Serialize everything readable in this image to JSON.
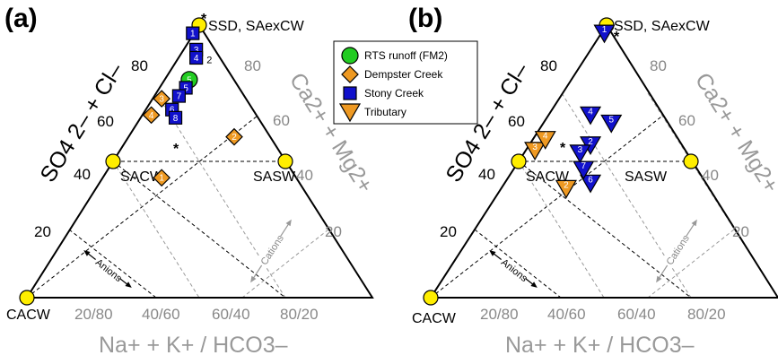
{
  "colors": {
    "rts": "#22cc22",
    "dempster": "#ee9922",
    "stony": "#1111cc",
    "tributary_fill": "#1111cc",
    "tributary_edge": "#ee9922",
    "vertex": "#ffee00",
    "grid_black": "#000000",
    "grid_grey": "#999999"
  },
  "chart_data": [
    {
      "type": "scatter",
      "panel_label": "(a)",
      "plot": "ternary",
      "left_axis_label": "SO4 2– + Cl–",
      "right_axis_label": "Ca2+ + Mg2+",
      "bottom_axis_label": "Na+ + K+ / HCO3–",
      "left_ticks": [
        "20",
        "40",
        "60",
        "80"
      ],
      "right_ticks": [
        "20",
        "40",
        "60",
        "80"
      ],
      "bottom_ticks": [
        "20/80",
        "40/60",
        "60/40",
        "80/20"
      ],
      "vertex_labels": {
        "top": "SSD, SAexCW",
        "bottom_left": "CACW"
      },
      "region_labels": [
        "SACW",
        "SASW"
      ],
      "gradient_labels": [
        "Anions",
        "Cations"
      ],
      "series": [
        {
          "name": "RTS runoff (FM2)",
          "marker": "circle",
          "points": [
            {
              "label": "5",
              "x": 0.47,
              "y": 0.8
            }
          ]
        },
        {
          "name": "Dempster Creek",
          "marker": "diamond",
          "points": [
            {
              "label": "1",
              "x": 0.39,
              "y": 0.44
            },
            {
              "label": "2",
              "x": 0.6,
              "y": 0.59
            },
            {
              "label": "3",
              "x": 0.39,
              "y": 0.73
            },
            {
              "label": "4",
              "x": 0.36,
              "y": 0.67
            }
          ]
        },
        {
          "name": "Stony Creek",
          "marker": "square",
          "points": [
            {
              "label": "1",
              "x": 0.48,
              "y": 0.97
            },
            {
              "label": "3",
              "x": 0.49,
              "y": 0.91
            },
            {
              "label": "4",
              "x": 0.49,
              "y": 0.88
            },
            {
              "label": "5",
              "x": 0.46,
              "y": 0.77
            },
            {
              "label": "6",
              "x": 0.42,
              "y": 0.69
            },
            {
              "label": "7",
              "x": 0.44,
              "y": 0.74
            },
            {
              "label": "8",
              "x": 0.43,
              "y": 0.66
            }
          ]
        }
      ],
      "annotations": [
        {
          "text": "2",
          "x": 0.52,
          "y": 0.86
        }
      ],
      "grid": true
    },
    {
      "type": "scatter",
      "panel_label": "(b)",
      "plot": "ternary",
      "left_axis_label": "SO4 2– + Cl–",
      "right_axis_label": "Ca2+ + Mg2+",
      "bottom_axis_label": "Na+ + K+ / HCO3–",
      "left_ticks": [
        "20",
        "40",
        "60",
        "80"
      ],
      "right_ticks": [
        "20",
        "40",
        "60",
        "80"
      ],
      "bottom_ticks": [
        "20/80",
        "40/60",
        "60/40",
        "80/20"
      ],
      "vertex_labels": {
        "top": "SSD, SAexCW",
        "bottom_left": "CACW"
      },
      "region_labels": [
        "SACW",
        "SASW"
      ],
      "gradient_labels": [
        "Anions",
        "Cations"
      ],
      "series": [
        {
          "name": "Stony Creek",
          "marker": "triangle",
          "points": [
            {
              "label": "1",
              "x": 0.5,
              "y": 0.97
            },
            {
              "label": "2",
              "x": 0.46,
              "y": 0.56
            },
            {
              "label": "3",
              "x": 0.43,
              "y": 0.53
            },
            {
              "label": "4",
              "x": 0.46,
              "y": 0.67
            },
            {
              "label": "5",
              "x": 0.52,
              "y": 0.64
            },
            {
              "label": "6",
              "x": 0.46,
              "y": 0.42
            },
            {
              "label": "7",
              "x": 0.44,
              "y": 0.47
            }
          ]
        },
        {
          "name": "Tributary",
          "marker": "triangle-orange",
          "points": [
            {
              "label": "2",
              "x": 0.39,
              "y": 0.4
            },
            {
              "label": "3",
              "x": 0.3,
              "y": 0.54
            },
            {
              "label": "4",
              "x": 0.33,
              "y": 0.58
            }
          ]
        }
      ],
      "annotations": [],
      "grid": true
    }
  ],
  "legend": {
    "placement": "center",
    "entries": [
      {
        "label": "RTS runoff (FM2)",
        "marker": "circle"
      },
      {
        "label": "Dempster Creek",
        "marker": "diamond"
      },
      {
        "label": "Stony Creek",
        "marker": "square"
      },
      {
        "label": "Tributary",
        "marker": "triangle-orange"
      }
    ]
  }
}
